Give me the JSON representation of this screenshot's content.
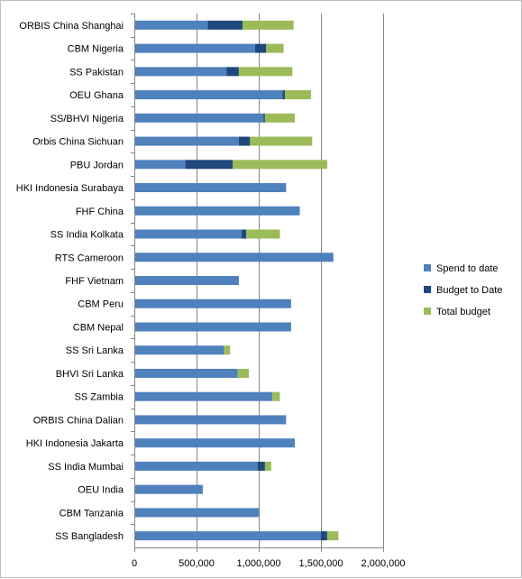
{
  "chart_data": {
    "type": "bar",
    "orientation": "horizontal",
    "stacked": true,
    "title": "",
    "xlabel": "",
    "ylabel": "",
    "xlim": [
      0,
      2000000
    ],
    "x_ticks": [
      0,
      500000,
      1000000,
      1500000,
      2000000
    ],
    "x_tick_labels": [
      "0",
      "500,000",
      "1,000,000",
      "1,500,000",
      "2,000,000"
    ],
    "grid": "vertical major gridlines",
    "legend_position": "right",
    "categories": [
      "ORBIS China Shanghai",
      "CBM Nigeria",
      "SS Pakistan",
      "OEU Ghana",
      "SS/BHVI Nigeria",
      "Orbis China Sichuan",
      "PBU Jordan",
      "HKI Indonesia Surabaya",
      "FHF China",
      "SS India Kolkata",
      "RTS Cameroon",
      "FHF Vietnam",
      "CBM Peru",
      "CBM Nepal",
      "SS Sri Lanka",
      "BHVI Sri Lanka",
      "SS Zambia",
      "ORBIS China Dalian",
      "HKI Indonesia Jakarta",
      "SS India Mumbai",
      "OEU India",
      "CBM Tanzania",
      "SS Bangladesh"
    ],
    "series": [
      {
        "name": "Spend to date",
        "color": "#4f81bd",
        "values": [
          590000,
          970000,
          740000,
          1190000,
          1040000,
          840000,
          410000,
          1220000,
          1330000,
          860000,
          1600000,
          840000,
          1260000,
          1260000,
          720000,
          830000,
          1110000,
          1220000,
          1290000,
          990000,
          550000,
          1000000,
          1500000
        ]
      },
      {
        "name": "Budget to Date",
        "color": "#1f497d",
        "values": [
          280000,
          90000,
          100000,
          20000,
          10000,
          90000,
          380000,
          0,
          0,
          40000,
          0,
          0,
          0,
          0,
          0,
          0,
          0,
          0,
          0,
          60000,
          0,
          0,
          50000
        ]
      },
      {
        "name": "Total budget",
        "color": "#9bbb59",
        "values": [
          410000,
          140000,
          430000,
          210000,
          240000,
          500000,
          760000,
          0,
          0,
          270000,
          0,
          0,
          0,
          0,
          50000,
          90000,
          60000,
          0,
          0,
          50000,
          0,
          0,
          90000
        ]
      }
    ]
  }
}
